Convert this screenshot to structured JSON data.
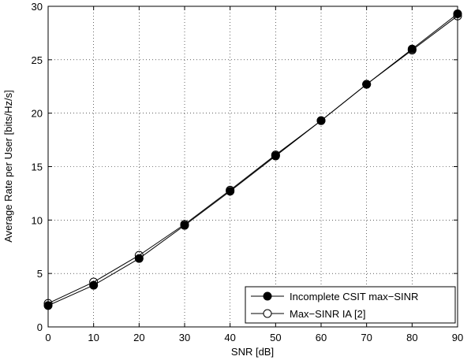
{
  "chart_data": {
    "type": "line",
    "title": "",
    "xlabel": "SNR [dB]",
    "ylabel": "Average Rate per User [bits/Hz/s]",
    "xlim": [
      0,
      90
    ],
    "ylim": [
      0,
      30
    ],
    "xticks": [
      0,
      10,
      20,
      30,
      40,
      50,
      60,
      70,
      80,
      90
    ],
    "yticks": [
      0,
      5,
      10,
      15,
      20,
      25,
      30
    ],
    "grid": true,
    "legend_position": "bottom-right",
    "x": [
      0,
      10,
      20,
      30,
      40,
      50,
      60,
      70,
      80,
      90
    ],
    "series": [
      {
        "name": "Incomplete CSIT max−SINR",
        "marker": "filled-circle",
        "color": "#000000",
        "values": [
          2.0,
          3.9,
          6.4,
          9.5,
          12.7,
          16.0,
          19.3,
          22.7,
          26.0,
          29.3
        ]
      },
      {
        "name": "Max−SINR IA [2]",
        "marker": "open-circle",
        "color": "#000000",
        "values": [
          2.2,
          4.2,
          6.7,
          9.6,
          12.8,
          16.1,
          19.3,
          22.7,
          25.9,
          29.1
        ]
      }
    ]
  }
}
